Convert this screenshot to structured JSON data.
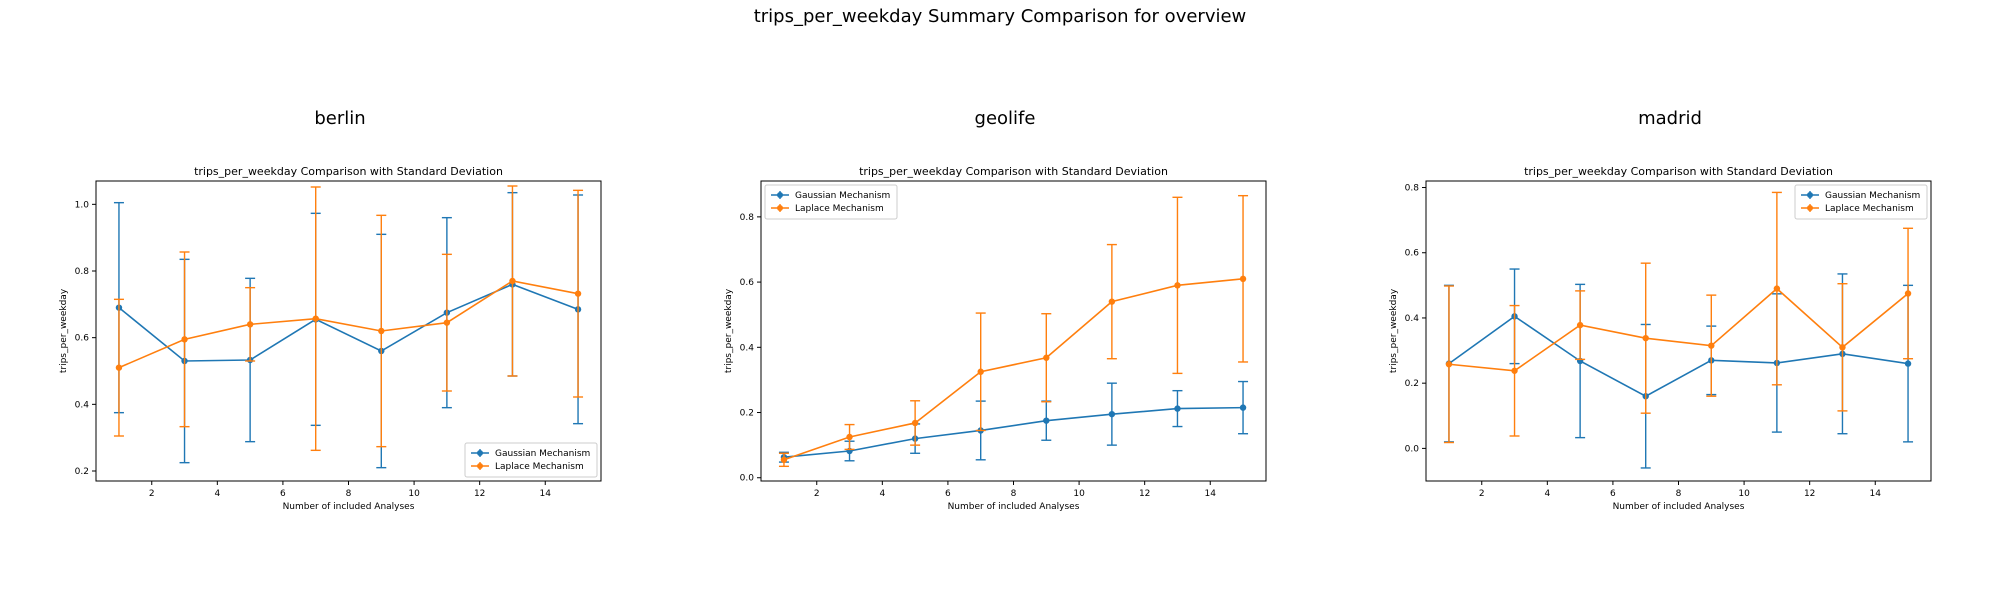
{
  "figure": {
    "suptitle": "trips_per_weekday Summary Comparison for overview",
    "colors": {
      "gaussian": "#1f77b4",
      "laplace": "#ff7f0e"
    }
  },
  "chart_data": [
    {
      "type": "line",
      "panel_title": "berlin",
      "title": "trips_per_weekday Comparison with Standard Deviation",
      "xlabel": "Number of included Analyses",
      "ylabel": "trips_per_weekday",
      "xlim": [
        0.3,
        15.7
      ],
      "ylim": [
        0.17,
        1.07
      ],
      "xticks": [
        2,
        4,
        6,
        8,
        10,
        12,
        14
      ],
      "yticks": [
        0.2,
        0.4,
        0.6,
        0.8,
        1.0
      ],
      "ytick_labels": [
        "0.2",
        "0.4",
        "0.6",
        "0.8",
        "1.0"
      ],
      "legend_position": "lower-right",
      "x": [
        1,
        3,
        5,
        7,
        9,
        11,
        13,
        15
      ],
      "series": [
        {
          "name": "Gaussian Mechanism",
          "color": "#1f77b4",
          "values": [
            0.69,
            0.53,
            0.533,
            0.655,
            0.56,
            0.675,
            0.76,
            0.685
          ],
          "std": [
            0.315,
            0.305,
            0.245,
            0.318,
            0.35,
            0.285,
            0.275,
            0.343
          ]
        },
        {
          "name": "Laplace Mechanism",
          "color": "#ff7f0e",
          "values": [
            0.51,
            0.595,
            0.64,
            0.657,
            0.62,
            0.645,
            0.77,
            0.732
          ],
          "std": [
            0.205,
            0.262,
            0.11,
            0.395,
            0.347,
            0.205,
            0.285,
            0.31
          ]
        }
      ]
    },
    {
      "type": "line",
      "panel_title": "geolife",
      "title": "trips_per_weekday Comparison with Standard Deviation",
      "xlabel": "Number of included Analyses",
      "ylabel": "trips_per_weekday",
      "xlim": [
        0.3,
        15.7
      ],
      "ylim": [
        -0.01,
        0.91
      ],
      "xticks": [
        2,
        4,
        6,
        8,
        10,
        12,
        14
      ],
      "yticks": [
        0.0,
        0.2,
        0.4,
        0.6,
        0.8
      ],
      "ytick_labels": [
        "0.0",
        "0.2",
        "0.4",
        "0.6",
        "0.8"
      ],
      "legend_position": "upper-left",
      "x": [
        1,
        3,
        5,
        7,
        9,
        11,
        13,
        15
      ],
      "series": [
        {
          "name": "Gaussian Mechanism",
          "color": "#1f77b4",
          "values": [
            0.063,
            0.082,
            0.12,
            0.145,
            0.175,
            0.195,
            0.212,
            0.215
          ],
          "std": [
            0.015,
            0.03,
            0.045,
            0.09,
            0.06,
            0.095,
            0.055,
            0.08
          ]
        },
        {
          "name": "Laplace Mechanism",
          "color": "#ff7f0e",
          "values": [
            0.055,
            0.125,
            0.168,
            0.325,
            0.368,
            0.54,
            0.59,
            0.61
          ],
          "std": [
            0.02,
            0.038,
            0.068,
            0.18,
            0.135,
            0.175,
            0.27,
            0.255
          ]
        }
      ]
    },
    {
      "type": "line",
      "panel_title": "madrid",
      "title": "trips_per_weekday Comparison with Standard Deviation",
      "xlabel": "Number of included Analyses",
      "ylabel": "trips_per_weekday",
      "xlim": [
        0.3,
        15.7
      ],
      "ylim": [
        -0.1,
        0.82
      ],
      "xticks": [
        2,
        4,
        6,
        8,
        10,
        12,
        14
      ],
      "yticks": [
        0.0,
        0.2,
        0.4,
        0.6,
        0.8
      ],
      "ytick_labels": [
        "0.0",
        "0.2",
        "0.4",
        "0.6",
        "0.8"
      ],
      "legend_position": "upper-right",
      "x": [
        1,
        3,
        5,
        7,
        9,
        11,
        13,
        15
      ],
      "series": [
        {
          "name": "Gaussian Mechanism",
          "color": "#1f77b4",
          "values": [
            0.26,
            0.405,
            0.268,
            0.16,
            0.27,
            0.262,
            0.29,
            0.26
          ],
          "std": [
            0.24,
            0.145,
            0.235,
            0.22,
            0.105,
            0.212,
            0.245,
            0.24
          ]
        },
        {
          "name": "Laplace Mechanism",
          "color": "#ff7f0e",
          "values": [
            0.258,
            0.238,
            0.378,
            0.338,
            0.315,
            0.49,
            0.31,
            0.475
          ],
          "std": [
            0.24,
            0.2,
            0.105,
            0.23,
            0.155,
            0.295,
            0.195,
            0.2
          ]
        }
      ]
    }
  ]
}
